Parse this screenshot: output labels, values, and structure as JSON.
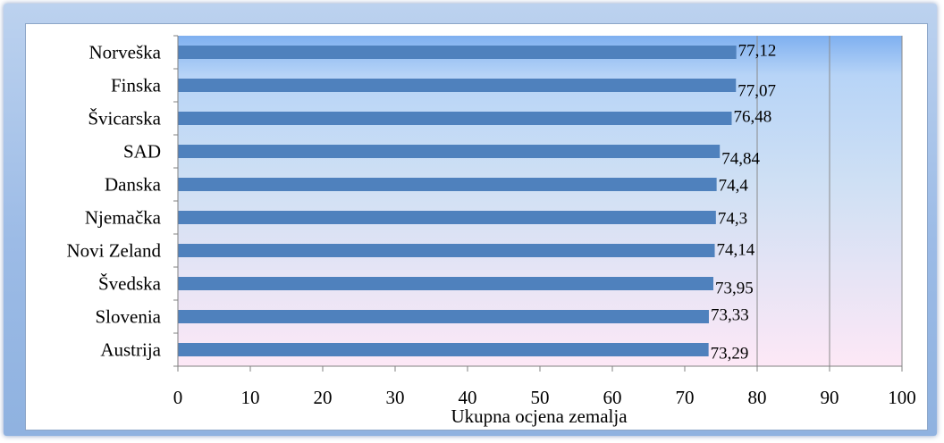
{
  "chart_data": {
    "type": "bar",
    "orientation": "horizontal",
    "title": "",
    "xlabel": "Ukupna ocjena zemalja",
    "ylabel": "",
    "xlim": [
      0,
      100
    ],
    "x_ticks": [
      0,
      10,
      20,
      30,
      40,
      50,
      60,
      70,
      80,
      90,
      100
    ],
    "grid": "vertical lines at 80, 90, 100",
    "legend": "none",
    "categories": [
      "Norveška",
      "Finska",
      "Švicarska",
      "SAD",
      "Danska",
      "Njemačka",
      "Novi Zeland",
      "Švedska",
      "Slovenia",
      "Austrija"
    ],
    "values": [
      77.12,
      77.07,
      76.48,
      74.84,
      74.4,
      74.3,
      74.14,
      73.95,
      73.33,
      73.29
    ],
    "data_labels": [
      "77,12",
      "77,07",
      "76,48",
      "74,84",
      "74,4",
      "74,3",
      "74,14",
      "73,95",
      "73,33",
      "73,29"
    ],
    "bar_color": "#4f81bd",
    "plot_gradient_top": "#7fb0f0",
    "plot_gradient_middle": "#cfe0f4",
    "plot_gradient_bottom": "#fde8f6"
  }
}
